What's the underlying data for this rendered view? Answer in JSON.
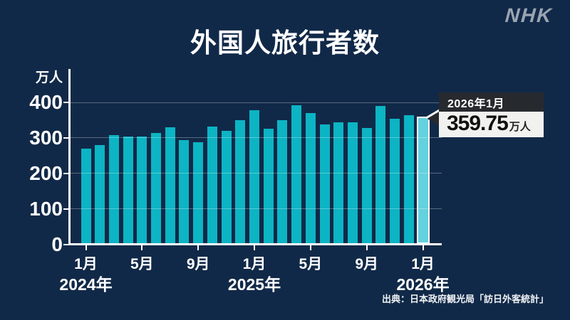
{
  "header": {
    "logo": "NHK",
    "title": "外国人旅行者数"
  },
  "chart_data": {
    "type": "bar",
    "title": "外国人旅行者数",
    "ylabel": "万人",
    "ylim": [
      0,
      400
    ],
    "yticks": [
      0,
      100,
      200,
      300,
      400
    ],
    "grid": true,
    "categories": [
      "2024年1月",
      "2024年2月",
      "2024年3月",
      "2024年4月",
      "2024年5月",
      "2024年6月",
      "2024年7月",
      "2024年8月",
      "2024年9月",
      "2024年10月",
      "2024年11月",
      "2024年12月",
      "2025年1月",
      "2025年2月",
      "2025年3月",
      "2025年4月",
      "2025年5月",
      "2025年6月",
      "2025年7月",
      "2025年8月",
      "2025年9月",
      "2025年10月",
      "2025年11月",
      "2025年12月",
      "2026年1月"
    ],
    "values": [
      270,
      279,
      308,
      304,
      304,
      313,
      329,
      293,
      287,
      331,
      319,
      349,
      378,
      326,
      350,
      391,
      369,
      338,
      344,
      343,
      327,
      389,
      353,
      363,
      359.75
    ],
    "highlight_index": 24,
    "xticks": [
      {
        "index": 0,
        "label": "1月"
      },
      {
        "index": 4,
        "label": "5月"
      },
      {
        "index": 8,
        "label": "9月"
      },
      {
        "index": 12,
        "label": "1月"
      },
      {
        "index": 16,
        "label": "5月"
      },
      {
        "index": 20,
        "label": "9月"
      },
      {
        "index": 24,
        "label": "1月"
      }
    ],
    "year_labels": [
      {
        "index": 0,
        "label": "2024年"
      },
      {
        "index": 12,
        "label": "2025年"
      },
      {
        "index": 24,
        "label": "2026年"
      }
    ],
    "colors": {
      "background": "#112948",
      "bar": "#0cb4c4",
      "highlight_bar": "#63d2de",
      "highlight_border": "#ffffff",
      "axis": "#ffffff"
    }
  },
  "callout": {
    "date": "2026年1月",
    "value": "359.75",
    "unit": "万人"
  },
  "source": "出典：日本政府観光局「訪日外客統計」"
}
